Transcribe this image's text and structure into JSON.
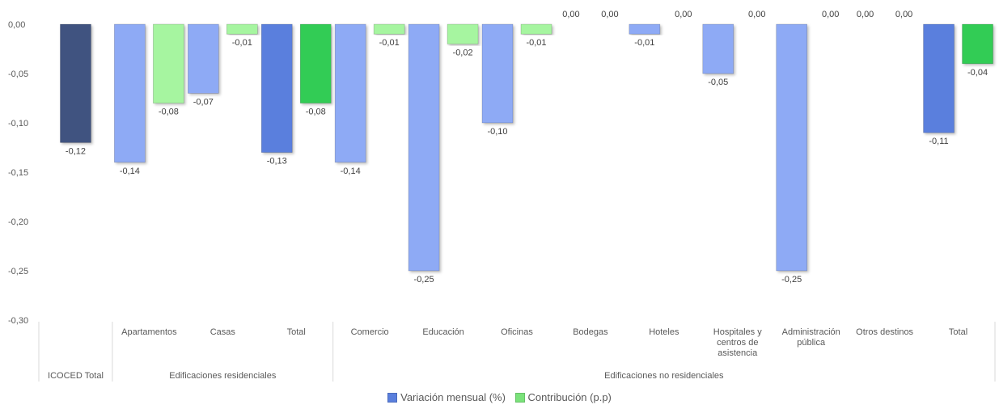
{
  "chart_data": {
    "type": "bar",
    "title": "",
    "xlabel": "",
    "ylabel": "",
    "ylim": [
      -0.3,
      0.0
    ],
    "yticks": [
      "0,00",
      "-0,05",
      "-0,10",
      "-0,15",
      "-0,20",
      "-0,25",
      "-0,30"
    ],
    "grid": false,
    "legend_position": "bottom",
    "groups": [
      {
        "label": "ICOCED Total",
        "categories": [
          ""
        ]
      },
      {
        "label": "Edificaciones residenciales",
        "categories": [
          "Apartamentos",
          "Casas",
          "Total"
        ]
      },
      {
        "label": "Edificaciones no residenciales",
        "categories": [
          "Comercio",
          "Educación",
          "Oficinas",
          "Bodegas",
          "Hoteles",
          "Hospitales y centros de asistencia",
          "Administración pública",
          "Otros destinos",
          "Total"
        ]
      }
    ],
    "categories": [
      "ICOCED Total",
      "Apartamentos",
      "Casas",
      "Total",
      "Comercio",
      "Educación",
      "Oficinas",
      "Bodegas",
      "Hoteles",
      "Hospitales y centros de asistencia",
      "Administración pública",
      "Otros destinos",
      "Total"
    ],
    "series": [
      {
        "name": "Variación mensual (%)",
        "values": [
          -0.12,
          -0.14,
          -0.07,
          -0.13,
          -0.14,
          -0.25,
          -0.1,
          0.0,
          -0.01,
          -0.05,
          -0.25,
          0.0,
          -0.11
        ],
        "labels": [
          "-0,12",
          "-0,14",
          "-0,07",
          "-0,13",
          "-0,14",
          "-0,25",
          "-0,10",
          "0,00",
          "-0,01",
          "-0,05",
          "-0,25",
          "0,00",
          "-0,11"
        ]
      },
      {
        "name": "Contribución (p.p)",
        "values": [
          null,
          -0.08,
          -0.01,
          -0.08,
          -0.01,
          -0.02,
          -0.01,
          0.0,
          0.0,
          0.0,
          0.0,
          0.0,
          -0.04
        ],
        "labels": [
          "",
          "-0,08",
          "-0,01",
          "-0,08",
          "-0,01",
          "-0,02",
          "-0,01",
          "0,00",
          "0,00",
          "0,00",
          "0,00",
          "0,00",
          "-0,04"
        ]
      }
    ],
    "colors": {
      "variacion": "#8eaaf5",
      "contribucion": "#a6f5a0",
      "variacion_total": "#5a7fdd",
      "contribucion_total": "#33cc55",
      "icoced_total": "#3f5380"
    }
  }
}
